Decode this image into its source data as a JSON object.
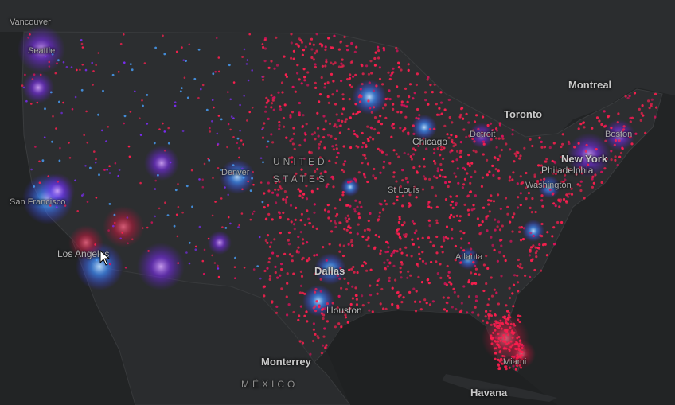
{
  "map": {
    "basemap_colors": {
      "background": "#242627",
      "land": "#2b2d2f",
      "water": "#1f2122",
      "border": "#3a3c3e"
    },
    "heat_colors": {
      "dense": "#ff1f4f",
      "medium": "#d8115a",
      "sparse_purple": "#7a2cf0",
      "cluster_blue": "#4aa3ff"
    },
    "labels": {
      "vancouver": "Vancouver",
      "seattle": "Seattle",
      "san_francisco": "San Francisco",
      "los_angeles": "Los Angeles",
      "denver": "Denver",
      "dallas": "Dallas",
      "houston": "Houston",
      "st_louis": "St Louis",
      "chicago": "Chicago",
      "detroit": "Detroit",
      "toronto": "Toronto",
      "montreal": "Montreal",
      "boston": "Boston",
      "new_york": "New York",
      "philadelphia": "Philadelphia",
      "washington": "Washington",
      "atlanta": "Atlanta",
      "miami": "Miami",
      "monterrey": "Monterrey",
      "havana": "Havana",
      "mexico": "MÉXICO",
      "united": "UNITED",
      "states": "STATES"
    },
    "cursor_icon": "mouse-pointer-icon"
  }
}
